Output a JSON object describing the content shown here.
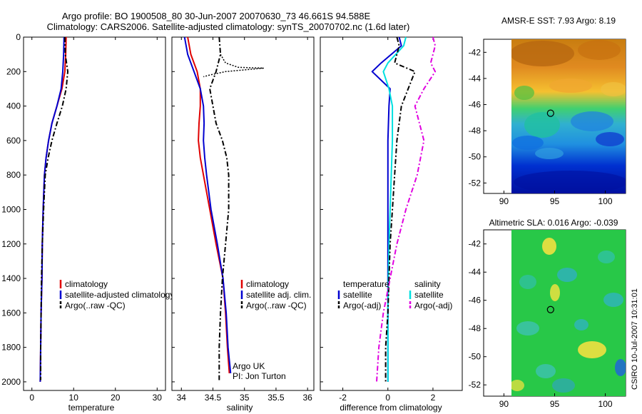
{
  "title_line1": "Argo profile: BO 1900508_80 30-Jun-2007 20070630_73 46.661S 94.588E",
  "title_line2": "Climatology: CARS2006. Satellite-adjusted climatology: synTS_20070702.nc (1.6d later)",
  "side_label": "CSIRO 10-Jul-2007 10:31:01",
  "colors": {
    "red": "#e00000",
    "blue": "#0000d0",
    "black": "#000000",
    "cyan": "#00e0e0",
    "magenta": "#e000e0"
  },
  "chart_data": [
    {
      "type": "line",
      "xlabel": "temperature",
      "xlim": [
        -2,
        32
      ],
      "ylim": [
        2050,
        0
      ],
      "xticks": [
        0,
        10,
        20,
        30
      ],
      "yticks": [
        0,
        200,
        400,
        600,
        800,
        1000,
        1200,
        1400,
        1600,
        1800,
        2000
      ],
      "legend": [
        "climatology",
        "satellite-adjusted climatology",
        "Argo(..raw -QC)"
      ],
      "series": [
        {
          "name": "climatology",
          "color": "red",
          "dash": "solid",
          "x": [
            8.2,
            8.1,
            7.9,
            7.2,
            6.0,
            4.8,
            4.0,
            3.4,
            3.0,
            2.7,
            2.5,
            2.4,
            2.2,
            2.1,
            2.0
          ],
          "y": [
            0,
            100,
            200,
            300,
            400,
            500,
            600,
            700,
            800,
            1000,
            1200,
            1400,
            1600,
            1800,
            2000
          ]
        },
        {
          "name": "satellite-adjusted climatology",
          "color": "blue",
          "dash": "solid",
          "x": [
            7.7,
            7.6,
            7.4,
            7.0,
            6.0,
            4.8,
            4.0,
            3.4,
            3.0,
            2.7,
            2.5,
            2.4,
            2.2,
            2.1,
            2.0
          ],
          "y": [
            0,
            100,
            200,
            300,
            400,
            500,
            600,
            700,
            800,
            1000,
            1200,
            1400,
            1600,
            1800,
            2000
          ]
        },
        {
          "name": "Argo(..raw -QC)",
          "color": "black",
          "dash": "dashdot",
          "x": [
            7.9,
            8.0,
            8.6,
            8.2,
            7.3,
            6.0,
            4.8,
            3.9,
            3.2,
            2.8,
            2.5,
            2.3,
            2.2,
            2.1,
            2.1
          ],
          "y": [
            0,
            100,
            200,
            300,
            400,
            500,
            600,
            700,
            800,
            1000,
            1200,
            1400,
            1600,
            1800,
            1990
          ]
        }
      ]
    },
    {
      "type": "line",
      "xlabel": "salinity",
      "xlim": [
        33.85,
        36.1
      ],
      "ylim": [
        2050,
        0
      ],
      "xticks": [
        34,
        34.5,
        35,
        35.5,
        36
      ],
      "legend": [
        "climatology",
        "satellite adj. clim.",
        "Argo(..raw -QC)"
      ],
      "annotations": [
        "Argo UK",
        "PI: Jon Turton"
      ],
      "series": [
        {
          "name": "climatology",
          "color": "red",
          "dash": "solid",
          "x": [
            34.1,
            34.15,
            34.25,
            34.3,
            34.3,
            34.28,
            34.27,
            34.3,
            34.35,
            34.45,
            34.55,
            34.66,
            34.7,
            34.73,
            34.76
          ],
          "y": [
            0,
            100,
            200,
            300,
            400,
            500,
            600,
            700,
            800,
            1000,
            1200,
            1400,
            1600,
            1800,
            1950
          ]
        },
        {
          "name": "satellite adj. clim.",
          "color": "blue",
          "dash": "solid",
          "x": [
            34.05,
            34.1,
            34.2,
            34.3,
            34.35,
            34.36,
            34.35,
            34.37,
            34.4,
            34.47,
            34.57,
            34.66,
            34.71,
            34.74,
            34.78
          ],
          "y": [
            0,
            100,
            200,
            300,
            400,
            500,
            600,
            700,
            800,
            1000,
            1200,
            1400,
            1600,
            1800,
            1950
          ]
        },
        {
          "name": "Argo(..raw -QC)",
          "color": "black",
          "dash": "dashdot",
          "x": [
            34.6,
            34.62,
            34.55,
            34.45,
            34.5,
            34.55,
            34.65,
            34.72,
            34.75,
            34.75,
            34.7,
            34.65,
            34.62,
            34.6,
            34.6
          ],
          "y": [
            0,
            100,
            200,
            300,
            400,
            500,
            600,
            700,
            800,
            1000,
            1200,
            1400,
            1600,
            1800,
            1990
          ]
        },
        {
          "name": "",
          "color": "black",
          "dash": "dotted",
          "x": [
            34.62,
            34.7,
            34.9,
            35.3,
            34.7,
            34.45,
            34.35
          ],
          "y": [
            100,
            150,
            175,
            180,
            200,
            220,
            230
          ]
        }
      ]
    },
    {
      "type": "line",
      "xlabel": "difference from climatology",
      "xlim": [
        -3,
        3.3
      ],
      "ylim": [
        2050,
        0
      ],
      "xticks": [
        -2,
        0,
        2
      ],
      "legend_groups": [
        {
          "heading": "temperature",
          "items": [
            "satellite",
            "Argo(-adj)"
          ]
        },
        {
          "heading": "salinity",
          "items": [
            "satellite",
            "Argo(-adj)"
          ]
        }
      ],
      "series": [
        {
          "name": "temperature satellite",
          "color": "blue",
          "dash": "solid",
          "x": [
            0.5,
            0.6,
            -0.3,
            -0.7,
            0.1,
            0.05,
            0.0,
            0.0,
            0.0,
            0.0,
            0.0,
            0.0,
            0.0,
            0.0
          ],
          "y": [
            0,
            50,
            150,
            200,
            300,
            400,
            600,
            800,
            1000,
            1200,
            1400,
            1600,
            1800,
            2000
          ]
        },
        {
          "name": "salinity satellite",
          "color": "cyan",
          "dash": "solid",
          "x": [
            0.8,
            0.7,
            0.0,
            -0.2,
            0.05,
            0.2,
            0.2,
            0.15,
            0.1,
            0.05,
            0.02,
            0.0,
            0.0,
            0.0
          ],
          "y": [
            0,
            50,
            150,
            200,
            300,
            400,
            600,
            800,
            1000,
            1200,
            1400,
            1600,
            1800,
            2000
          ]
        },
        {
          "name": "temperature Argo(-adj)",
          "color": "black",
          "dash": "dashdot",
          "x": [
            0.4,
            0.5,
            0.3,
            1.2,
            0.9,
            0.6,
            0.4,
            0.3,
            0.2,
            0.1,
            0.05,
            0.0,
            -0.1,
            -0.1
          ],
          "y": [
            0,
            50,
            150,
            200,
            300,
            400,
            600,
            800,
            1000,
            1200,
            1400,
            1600,
            1800,
            2000
          ]
        },
        {
          "name": "salinity Argo(-adj)",
          "color": "magenta",
          "dash": "dashdot",
          "x": [
            2.0,
            2.1,
            1.9,
            2.1,
            1.6,
            1.2,
            1.6,
            1.3,
            0.8,
            0.4,
            0.1,
            -0.2,
            -0.4,
            -0.5
          ],
          "y": [
            0,
            50,
            150,
            200,
            300,
            400,
            600,
            800,
            1000,
            1200,
            1400,
            1600,
            1800,
            2000
          ]
        }
      ]
    },
    {
      "type": "heatmap",
      "title": "AMSR-E SST: 7.93 Argo: 8.19",
      "xlim": [
        88,
        102
      ],
      "ylim": [
        -52.8,
        -41
      ],
      "xticks": [
        90,
        95,
        100
      ],
      "yticks": [
        -42,
        -44,
        -46,
        -48,
        -50,
        -52
      ],
      "data_extent": [
        90,
        102,
        -52.8,
        -41
      ],
      "marker": {
        "x": 94.6,
        "y": -46.66
      }
    },
    {
      "type": "heatmap",
      "title": "Altimetric SLA: 0.016 Argo: -0.039",
      "xlim": [
        88,
        102
      ],
      "ylim": [
        -52.8,
        -41
      ],
      "xticks": [
        90,
        95,
        100
      ],
      "yticks": [
        -42,
        -44,
        -46,
        -48,
        -50,
        -52
      ],
      "data_extent": [
        90,
        102,
        -52.8,
        -41
      ],
      "marker": {
        "x": 94.6,
        "y": -46.66
      }
    }
  ]
}
